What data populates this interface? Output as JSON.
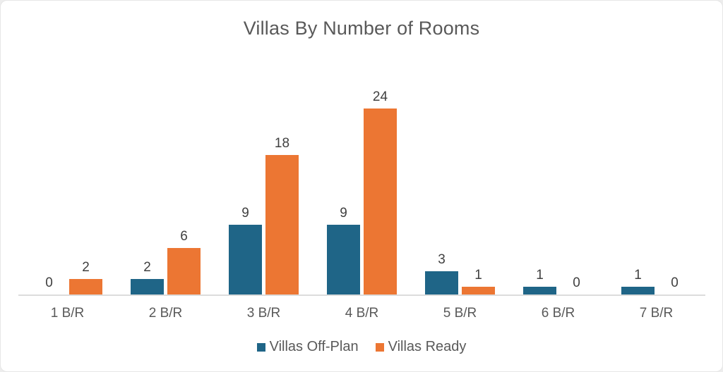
{
  "chart_data": {
    "type": "bar",
    "title": "Villas By Number of Rooms",
    "categories": [
      "1 B/R",
      "2 B/R",
      "3 B/R",
      "4 B/R",
      "5 B/R",
      "6 B/R",
      "7 B/R"
    ],
    "series": [
      {
        "name": "Villas Off-Plan",
        "color": "#1F6587",
        "values": [
          0,
          2,
          9,
          9,
          3,
          1,
          1
        ]
      },
      {
        "name": "Villas Ready",
        "color": "#EC7633",
        "values": [
          2,
          6,
          18,
          24,
          1,
          0,
          0
        ]
      }
    ],
    "xlabel": "",
    "ylabel": "",
    "ylim": [
      0,
      26
    ],
    "grid": false,
    "y_axis_visible": false,
    "data_labels": "outside_end",
    "legend_position": "bottom",
    "axis_line_color": "#DCDCDC",
    "title_color": "#595959",
    "label_color": "#404040",
    "category_label_color": "#595959"
  }
}
